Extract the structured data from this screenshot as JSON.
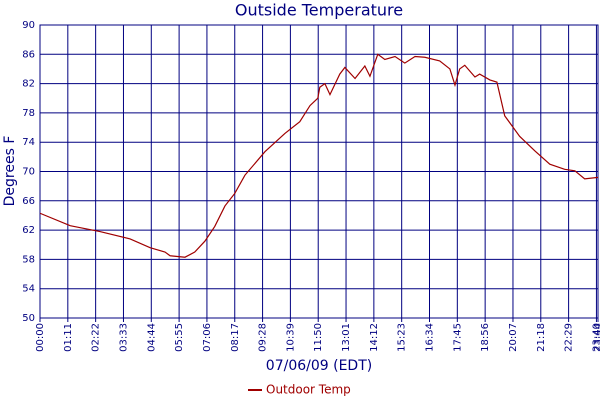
{
  "chart_data": {
    "type": "line",
    "title": "Outside Temperature",
    "xlabel": "07/06/09 (EDT)",
    "ylabel": "Degrees F",
    "x": [
      0,
      77,
      153,
      230,
      281,
      319,
      332,
      370,
      395,
      421,
      446,
      472,
      497,
      523,
      574,
      625,
      663,
      689,
      709,
      714,
      727,
      740,
      765,
      778,
      804,
      829,
      842,
      862,
      880,
      906,
      931,
      957,
      982,
      1020,
      1046,
      1059,
      1071,
      1084,
      1110,
      1122,
      1148,
      1166,
      1186,
      1224,
      1263,
      1301,
      1339,
      1365,
      1390,
      1424
    ],
    "series": [
      {
        "name": "Outdoor Temp",
        "color": "#a00000",
        "values": [
          64.3,
          62.6,
          61.8,
          60.8,
          59.6,
          59.0,
          58.5,
          58.3,
          59.0,
          60.5,
          62.5,
          65.3,
          67.0,
          69.5,
          72.7,
          75.2,
          76.8,
          79.0,
          80.0,
          81.5,
          82.0,
          80.5,
          83.3,
          84.2,
          82.7,
          84.4,
          83.0,
          86.0,
          85.3,
          85.7,
          84.8,
          85.7,
          85.6,
          85.1,
          84.0,
          81.8,
          84.0,
          84.5,
          82.9,
          83.3,
          82.5,
          82.2,
          77.6,
          74.8,
          72.8,
          71.0,
          70.3,
          70.1,
          69.0,
          69.2
        ]
      }
    ],
    "xlim": [
      0,
      1424
    ],
    "xticks": [
      {
        "value": 0,
        "label": "00:00"
      },
      {
        "value": 71,
        "label": "01:11"
      },
      {
        "value": 142,
        "label": "02:22"
      },
      {
        "value": 213,
        "label": "03:33"
      },
      {
        "value": 284,
        "label": "04:44"
      },
      {
        "value": 355,
        "label": "05:55"
      },
      {
        "value": 426,
        "label": "07:06"
      },
      {
        "value": 497,
        "label": "08:17"
      },
      {
        "value": 568,
        "label": "09:28"
      },
      {
        "value": 639,
        "label": "10:39"
      },
      {
        "value": 710,
        "label": "11:50"
      },
      {
        "value": 781,
        "label": "13:01"
      },
      {
        "value": 852,
        "label": "14:12"
      },
      {
        "value": 923,
        "label": "15:23"
      },
      {
        "value": 994,
        "label": "16:34"
      },
      {
        "value": 1065,
        "label": "17:45"
      },
      {
        "value": 1136,
        "label": "18:56"
      },
      {
        "value": 1207,
        "label": "20:07"
      },
      {
        "value": 1278,
        "label": "21:18"
      },
      {
        "value": 1349,
        "label": "22:29"
      },
      {
        "value": 1420,
        "label": "23:40"
      },
      {
        "value": 1424,
        "label": "23:44"
      }
    ],
    "ylim": [
      50,
      90
    ],
    "yticks": [
      50,
      54,
      58,
      62,
      66,
      70,
      74,
      78,
      82,
      86,
      90
    ],
    "grid": true
  }
}
